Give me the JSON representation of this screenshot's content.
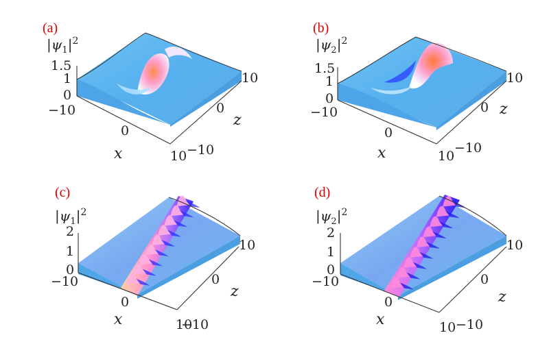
{
  "chart_data": [
    {
      "type": "surface",
      "panel_label": "(a)",
      "zlabel": {
        "pre": "|ψ",
        "sub": "1",
        "post": "|",
        "sup": "2"
      },
      "xlabel": "x",
      "ylabel": "z",
      "x_ticks": [
        "−10",
        "0",
        "10"
      ],
      "z_ticks": [
        "−10",
        "0",
        "10"
      ],
      "value_ticks": [
        "1.5",
        "1",
        "0"
      ],
      "background_level": 1,
      "feature": "localized peak (rogue-wave)",
      "peak_approx": 1.5
    },
    {
      "type": "surface",
      "panel_label": "(b)",
      "zlabel": {
        "pre": "|ψ",
        "sub": "2",
        "post": "|",
        "sup": "2"
      },
      "xlabel": "x",
      "ylabel": "z",
      "x_ticks": [
        "−10",
        "0",
        "10"
      ],
      "z_ticks": [
        "−10",
        "0",
        "10"
      ],
      "value_ticks": [
        "1.5",
        "1",
        "0"
      ],
      "background_level": 1,
      "feature": "localized peak (rogue-wave)",
      "peak_approx": 1.5
    },
    {
      "type": "surface",
      "panel_label": "(c)",
      "zlabel": {
        "pre": "|ψ",
        "sub": "1",
        "post": "|",
        "sup": "2"
      },
      "xlabel": "x",
      "ylabel": "z",
      "x_ticks": [
        "−10",
        "0",
        "10"
      ],
      "z_ticks": [
        "−10",
        "0",
        "10"
      ],
      "value_ticks": [
        "2",
        "1",
        "0"
      ],
      "background_level": 1,
      "feature": "periodic breather train along z",
      "peak_approx": 2
    },
    {
      "type": "surface",
      "panel_label": "(d)",
      "zlabel": {
        "pre": "|ψ",
        "sub": "2",
        "post": "|",
        "sup": "2"
      },
      "xlabel": "x",
      "ylabel": "z",
      "x_ticks": [
        "−10",
        "0",
        "10"
      ],
      "z_ticks": [
        "−10",
        "0",
        "10"
      ],
      "value_ticks": [
        "2",
        "1",
        "0"
      ],
      "background_level": 1,
      "feature": "periodic breather train along z",
      "peak_approx": 2
    }
  ],
  "colors": {
    "label_red": "#e00000",
    "surface_blue": "#59b2f0",
    "surface_light": "#a8dcff",
    "peak_pink": "#ff9ec8",
    "peak_orange": "#ff8a50",
    "trough_blue": "#3a2cff"
  }
}
